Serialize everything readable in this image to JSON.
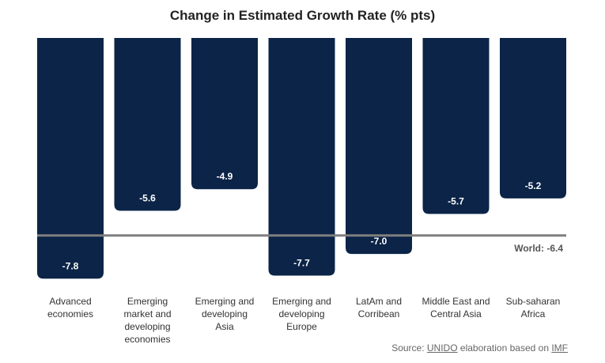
{
  "chart_data": {
    "type": "bar",
    "title": "Change in Estimated Growth Rate (% pts)",
    "categories": [
      [
        "Advanced",
        "economies"
      ],
      [
        "Emerging",
        "market and",
        "developing",
        "economies"
      ],
      [
        "Emerging and",
        "developing",
        "Asia"
      ],
      [
        "Emerging and",
        "developing",
        "Europe"
      ],
      [
        "LatAm and",
        "Corribean"
      ],
      [
        "Middle East and",
        "Central Asia"
      ],
      [
        "Sub-saharan",
        "Africa"
      ]
    ],
    "values": [
      -7.8,
      -5.6,
      -4.9,
      -7.7,
      -7.0,
      -5.7,
      -5.2
    ],
    "value_labels": [
      "-7.8",
      "-5.6",
      "-4.9",
      "-7.7",
      "-7.0",
      "-5.7",
      "-5.2"
    ],
    "reference_line": {
      "label": "World: -6.4",
      "value": -6.4
    },
    "ylim": [
      -8.2,
      0
    ],
    "xlabel": "",
    "ylabel": "",
    "grid": false,
    "colors": {
      "bar": "#0b2447",
      "bar_label": "#ffffff",
      "reference": "#7f7f7f",
      "text": "#333333"
    }
  },
  "source": {
    "prefix": "Source: ",
    "org": "UNIDO",
    "middle": " elaboration based on ",
    "ref": "IMF"
  }
}
